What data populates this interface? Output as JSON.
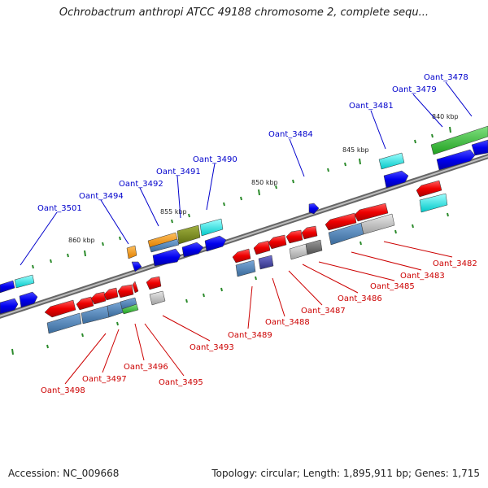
{
  "title": "Ochrobactrum anthropi ATCC 49188 chromosome 2, complete sequ...",
  "footer": {
    "accession": "Accession: NC_009668",
    "topology": "Topology: circular; Length: 1,895,911 bp; Genes: 1,715"
  },
  "kbp_labels": [
    "860 kbp",
    "855 kbp",
    "850 kbp",
    "845 kbp",
    "840 kbp"
  ],
  "top_genes": [
    "Oant_3501",
    "Oant_3494",
    "Oant_3492",
    "Oant_3491",
    "Oant_3490",
    "Oant_3484",
    "Oant_3481",
    "Oant_3479",
    "Oant_3478"
  ],
  "bottom_genes": [
    "Oant_3498",
    "Oant_3497",
    "Oant_3496",
    "Oant_3495",
    "Oant_3493",
    "Oant_3489",
    "Oant_3488",
    "Oant_3487",
    "Oant_3486",
    "Oant_3485",
    "Oant_3483",
    "Oant_3482"
  ],
  "colors": {
    "blue_label": "#0000cc",
    "red_label": "#cc0000",
    "backbone": "#888888"
  }
}
